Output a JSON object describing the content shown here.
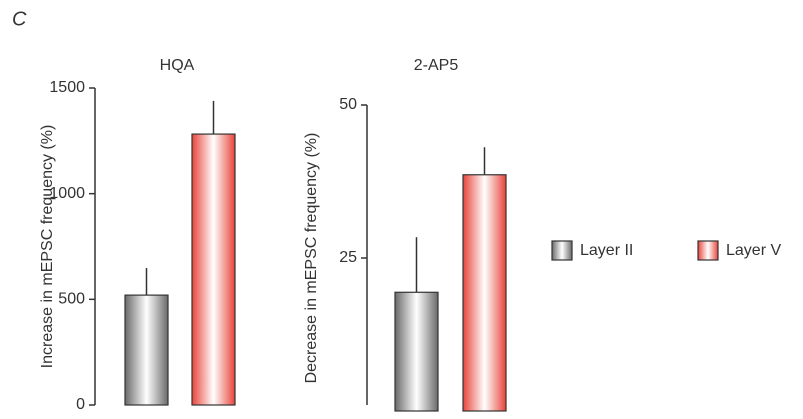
{
  "panel_label": "C",
  "chart_data": [
    {
      "type": "bar",
      "title": "HQA",
      "y_label": "Increase in mEPSC frequency (%)",
      "ylim": [
        0,
        1500
      ],
      "yticks": [
        0,
        500,
        1000,
        1500
      ],
      "series": [
        {
          "name": "Layer II",
          "color": "#6a6a6a",
          "values": [
            520
          ],
          "errors": [
            128
          ]
        },
        {
          "name": "Layer V",
          "color": "#e8443a",
          "values": [
            1282
          ],
          "errors": [
            157
          ]
        }
      ]
    },
    {
      "type": "bar",
      "title": "2-AP5",
      "y_label": "Decrease in mEPSC frequency (%)",
      "ylim": [
        0,
        50
      ],
      "yticks": [
        25,
        50
      ],
      "series": [
        {
          "name": "Layer II",
          "color": "#6a6a6a",
          "values": [
            19.4
          ],
          "errors": [
            9
          ]
        },
        {
          "name": "Layer V",
          "color": "#e8443a",
          "values": [
            38.6
          ],
          "errors": [
            4.5
          ]
        }
      ]
    }
  ]
}
